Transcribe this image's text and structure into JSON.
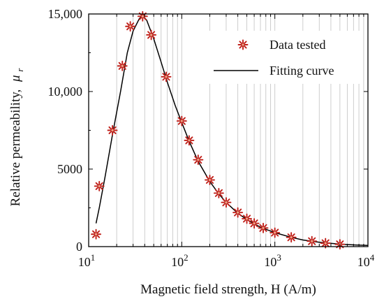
{
  "chart_data": {
    "type": "scatter",
    "xlabel": "Magnetic field strength, H (A/m)",
    "ylabel": "Relative permeability,",
    "ylabel_symbol": "μ",
    "ylabel_subscript": "r",
    "x_scale": "log",
    "xlim": [
      10,
      10000
    ],
    "ylim": [
      0,
      15000
    ],
    "x_ticks": [
      {
        "value": 10,
        "base": "10",
        "exp": "1"
      },
      {
        "value": 100,
        "base": "10",
        "exp": "2"
      },
      {
        "value": 1000,
        "base": "10",
        "exp": "3"
      },
      {
        "value": 10000,
        "base": "10",
        "exp": "4"
      }
    ],
    "y_ticks": [
      {
        "value": 0,
        "label": "0"
      },
      {
        "value": 5000,
        "label": "5000"
      },
      {
        "value": 10000,
        "label": "10,000"
      },
      {
        "value": 15000,
        "label": "15,000"
      }
    ],
    "grid": "vertical minor and major lines on log x-axis",
    "legend_position": "top-right",
    "series": [
      {
        "name": "Data tested",
        "kind": "scatter",
        "marker": "asterisk",
        "color": "#c0201a",
        "points": [
          [
            12,
            800
          ],
          [
            13,
            3900
          ],
          [
            18,
            7500
          ],
          [
            23,
            11650
          ],
          [
            28,
            14200
          ],
          [
            38,
            14850
          ],
          [
            47,
            13650
          ],
          [
            68,
            10950
          ],
          [
            100,
            8100
          ],
          [
            120,
            6850
          ],
          [
            150,
            5600
          ],
          [
            200,
            4300
          ],
          [
            250,
            3450
          ],
          [
            300,
            2850
          ],
          [
            400,
            2200
          ],
          [
            500,
            1800
          ],
          [
            600,
            1500
          ],
          [
            750,
            1200
          ],
          [
            1000,
            900
          ],
          [
            1500,
            600
          ],
          [
            2500,
            350
          ],
          [
            3500,
            220
          ],
          [
            5000,
            150
          ]
        ]
      },
      {
        "name": "Fitting curve",
        "kind": "line",
        "color": "#000000",
        "points": [
          [
            12,
            1500
          ],
          [
            13,
            2500
          ],
          [
            15,
            4500
          ],
          [
            18,
            7200
          ],
          [
            22,
            10000
          ],
          [
            26,
            12500
          ],
          [
            30,
            13900
          ],
          [
            35,
            14700
          ],
          [
            38,
            14900
          ],
          [
            42,
            14600
          ],
          [
            50,
            13400
          ],
          [
            60,
            11900
          ],
          [
            70,
            10600
          ],
          [
            85,
            9100
          ],
          [
            100,
            8000
          ],
          [
            120,
            6800
          ],
          [
            150,
            5500
          ],
          [
            200,
            4200
          ],
          [
            250,
            3400
          ],
          [
            300,
            2850
          ],
          [
            400,
            2150
          ],
          [
            500,
            1750
          ],
          [
            700,
            1250
          ],
          [
            1000,
            900
          ],
          [
            1500,
            600
          ],
          [
            2000,
            430
          ],
          [
            3000,
            280
          ],
          [
            5000,
            160
          ],
          [
            7000,
            110
          ],
          [
            10000,
            80
          ]
        ]
      }
    ]
  },
  "legend": {
    "data_label": "Data tested",
    "fit_label": "Fitting curve"
  },
  "colors": {
    "marker": "#c0201a",
    "curve": "#000000",
    "grid": "#c8c8c8"
  }
}
